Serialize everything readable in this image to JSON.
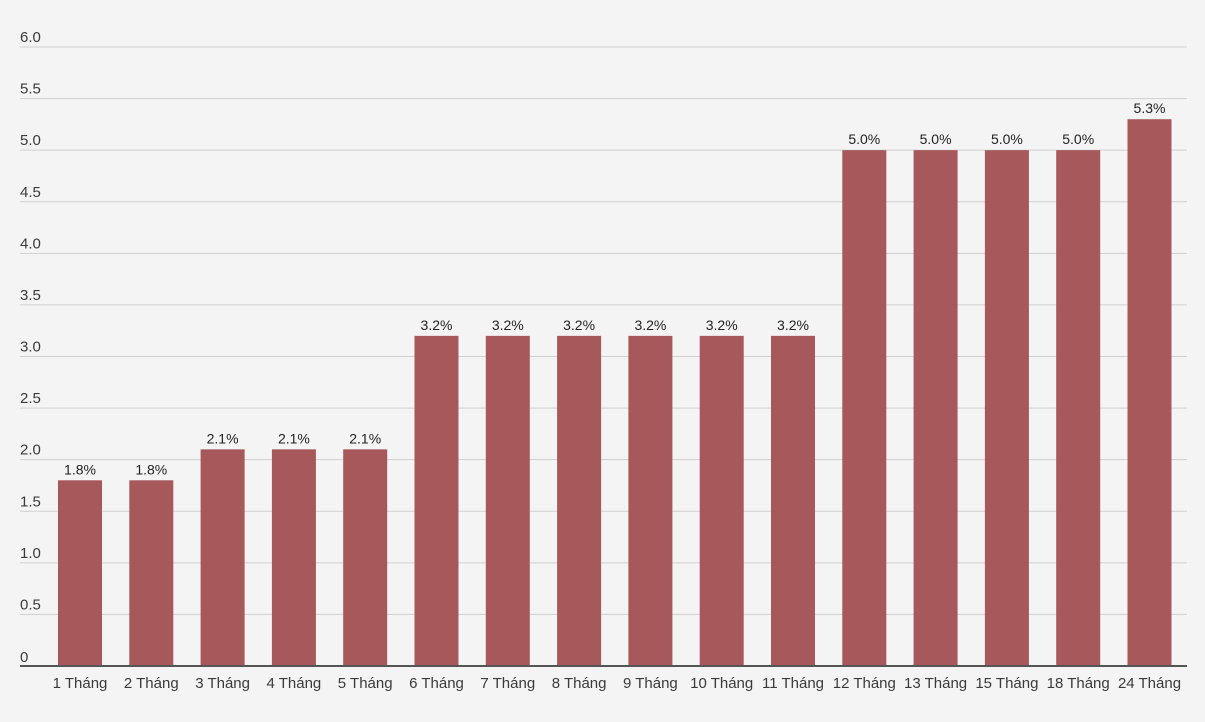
{
  "chart_data": {
    "type": "bar",
    "title": "",
    "xlabel": "",
    "ylabel": "",
    "ylim": [
      0,
      6.0
    ],
    "y_ticks": [
      "0",
      "0.5",
      "1.0",
      "1.5",
      "2.0",
      "2.5",
      "3.0",
      "3.5",
      "4.0",
      "4.5",
      "5.0",
      "5.5",
      "6.0"
    ],
    "grid": true,
    "legend": "none",
    "bar_color": "#a6585a",
    "categories": [
      "1 Tháng",
      "2 Tháng",
      "3 Tháng",
      "4 Tháng",
      "5 Tháng",
      "6 Tháng",
      "7 Tháng",
      "8 Tháng",
      "9 Tháng",
      "10 Tháng",
      "11 Tháng",
      "12 Tháng",
      "13 Tháng",
      "15 Tháng",
      "18 Tháng",
      "24 Tháng"
    ],
    "values": [
      1.8,
      1.8,
      2.1,
      2.1,
      2.1,
      3.2,
      3.2,
      3.2,
      3.2,
      3.2,
      3.2,
      5.0,
      5.0,
      5.0,
      5.0,
      5.3
    ],
    "data_labels": [
      "1.8%",
      "1.8%",
      "2.1%",
      "2.1%",
      "2.1%",
      "3.2%",
      "3.2%",
      "3.2%",
      "3.2%",
      "3.2%",
      "3.2%",
      "5.0%",
      "5.0%",
      "5.0%",
      "5.0%",
      "5.3%"
    ]
  }
}
